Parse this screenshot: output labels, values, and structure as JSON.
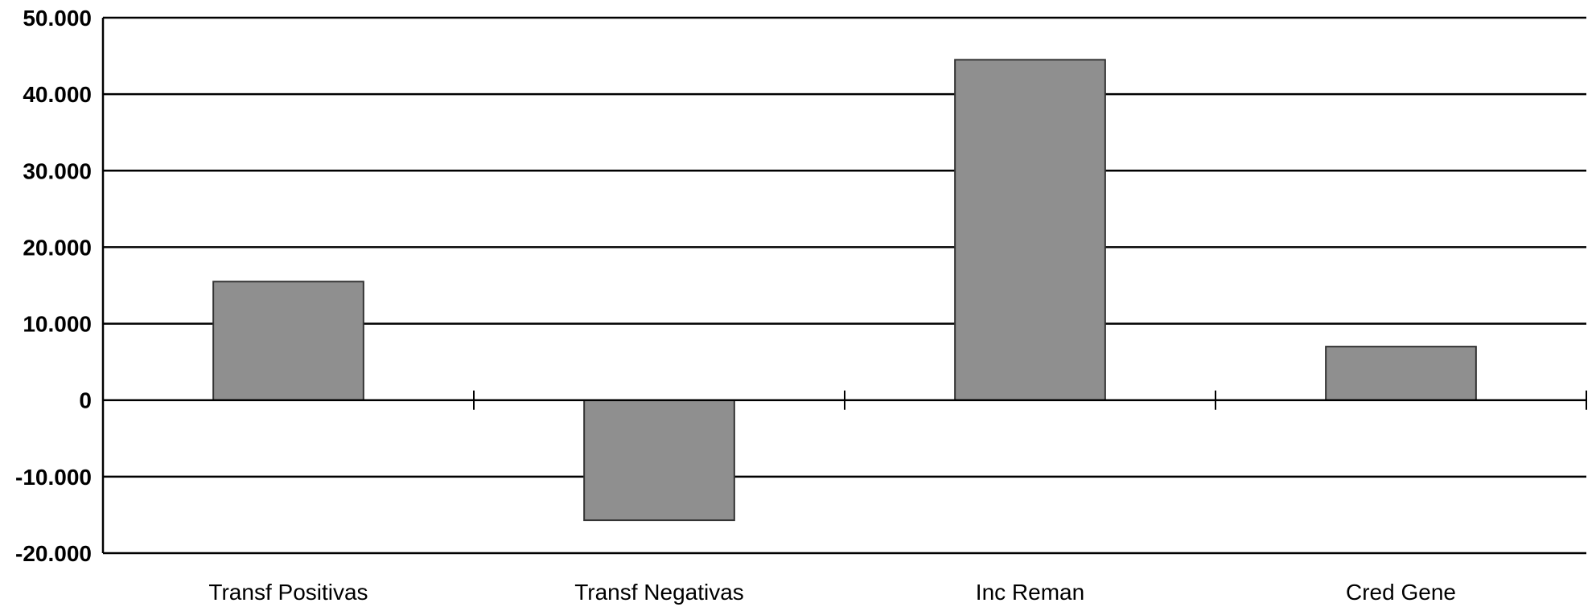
{
  "chart_data": {
    "type": "bar",
    "categories": [
      "Transf Positivas",
      "Transf Negativas",
      "Inc Reman",
      "Cred Gene"
    ],
    "values": [
      15500,
      -15700,
      44500,
      7000
    ],
    "title": "",
    "xlabel": "",
    "ylabel": "",
    "ylim": [
      -20000,
      50000
    ],
    "yticks": [
      50000,
      40000,
      30000,
      20000,
      10000,
      0,
      -10000,
      -20000
    ],
    "ytick_labels": [
      "50.000",
      "40.000",
      "30.000",
      "20.000",
      "10.000",
      "0",
      "-10.000",
      "-20.000"
    ],
    "grid": true,
    "legend": "none",
    "bar_color": "#8f8f8f",
    "bar_edge_color": "#333333",
    "grid_color": "#000000"
  }
}
